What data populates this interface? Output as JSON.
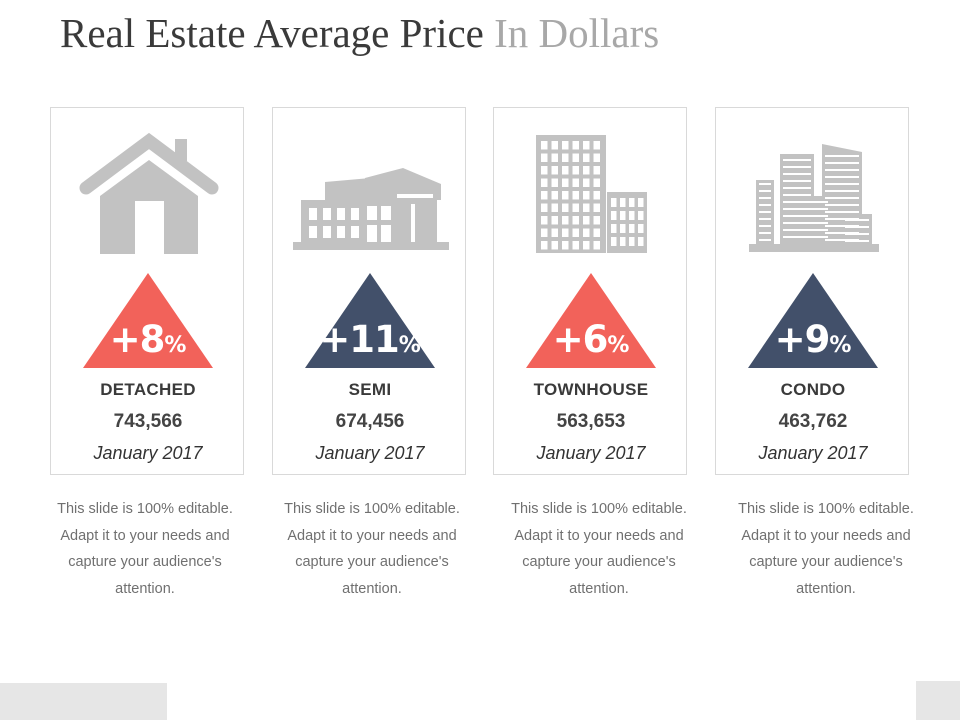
{
  "title": {
    "main": "Real Estate Average Price",
    "accent": "In Dollars"
  },
  "colors": {
    "coral": "#f2625a",
    "navy": "#42506a",
    "icon_gray": "#c2c2c2"
  },
  "cards": [
    {
      "icon": "house-icon",
      "change_number": "+8",
      "change_unit": "%",
      "label": "DETACHED",
      "value": "743,566",
      "date": "January 2017",
      "triangle_color": "coral",
      "description": "This slide is 100% editable. Adapt it to your needs and capture your audience's attention."
    },
    {
      "icon": "semi-building-icon",
      "change_number": "+11",
      "change_unit": "%",
      "label": "SEMI",
      "value": "674,456",
      "date": "January 2017",
      "triangle_color": "navy",
      "description": "This slide is 100% editable. Adapt it to your needs and capture your audience's attention."
    },
    {
      "icon": "townhouse-icon",
      "change_number": "+6",
      "change_unit": "%",
      "label": "TOWNHOUSE",
      "value": "563,653",
      "date": "January 2017",
      "triangle_color": "coral",
      "description": "This slide is 100% editable. Adapt it to your needs and capture your audience's attention."
    },
    {
      "icon": "condo-buildings-icon",
      "change_number": "+9",
      "change_unit": "%",
      "label": "CONDO",
      "value": "463,762",
      "date": "January 2017",
      "triangle_color": "navy",
      "description": "This slide is 100% editable. Adapt it to your needs and capture your audience's attention."
    }
  ]
}
